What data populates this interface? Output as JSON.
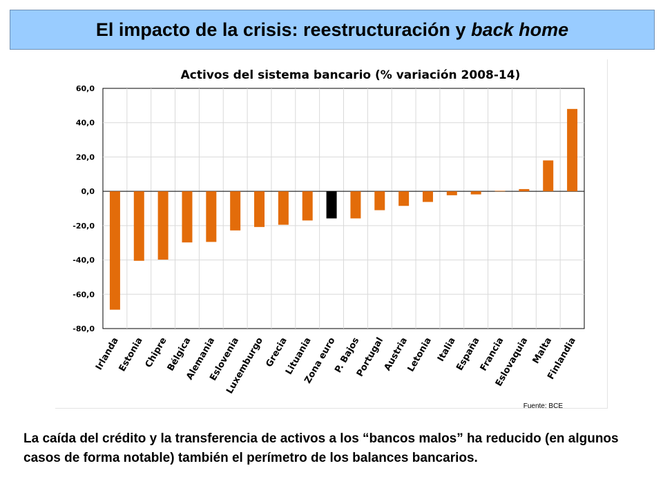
{
  "slide": {
    "title_main": "El impacto de la crisis: reestructuración y ",
    "title_italic": "back home",
    "caption": "La caída del crédito y la transferencia de activos a los “bancos malos” ha reducido (en algunos casos de forma notable) también el perímetro de los balances bancarios."
  },
  "chart_data": {
    "type": "bar",
    "title": "Activos del sistema bancario (% variación 2008-14)",
    "source": "Fuente: BCE",
    "categories": [
      "Irlanda",
      "Estonia",
      "Chipre",
      "Bélgica",
      "Alemania",
      "Eslovenia",
      "Luxemburgo",
      "Grecia",
      "Lituania",
      "Zona euro",
      "P. Bajos",
      "Portugal",
      "Austria",
      "Letonia",
      "Italia",
      "España",
      "Francia",
      "Eslovaquia",
      "Malta",
      "Finlandia"
    ],
    "values": [
      -69.0,
      -40.5,
      -39.8,
      -29.8,
      -29.5,
      -22.8,
      -20.8,
      -19.5,
      -17.0,
      -15.8,
      -15.8,
      -11.0,
      -8.5,
      -6.2,
      -2.3,
      -1.8,
      0.3,
      1.3,
      18.0,
      48.0
    ],
    "highlight_category": "Zona euro",
    "colors": {
      "bar": "#e36c0a",
      "highlight": "#000000",
      "grid": "#d9d9d9",
      "axis": "#000000"
    },
    "ylim": [
      -80,
      60
    ],
    "yticks": [
      60,
      40,
      20,
      0,
      -20,
      -40,
      -60,
      -80
    ],
    "ytick_labels": [
      "60,0",
      "40,0",
      "20,0",
      "0,0",
      "-20,0",
      "-40,0",
      "-60,0",
      "-80,0"
    ],
    "xlabel": "",
    "ylabel": "",
    "grid": true,
    "legend": "none"
  }
}
